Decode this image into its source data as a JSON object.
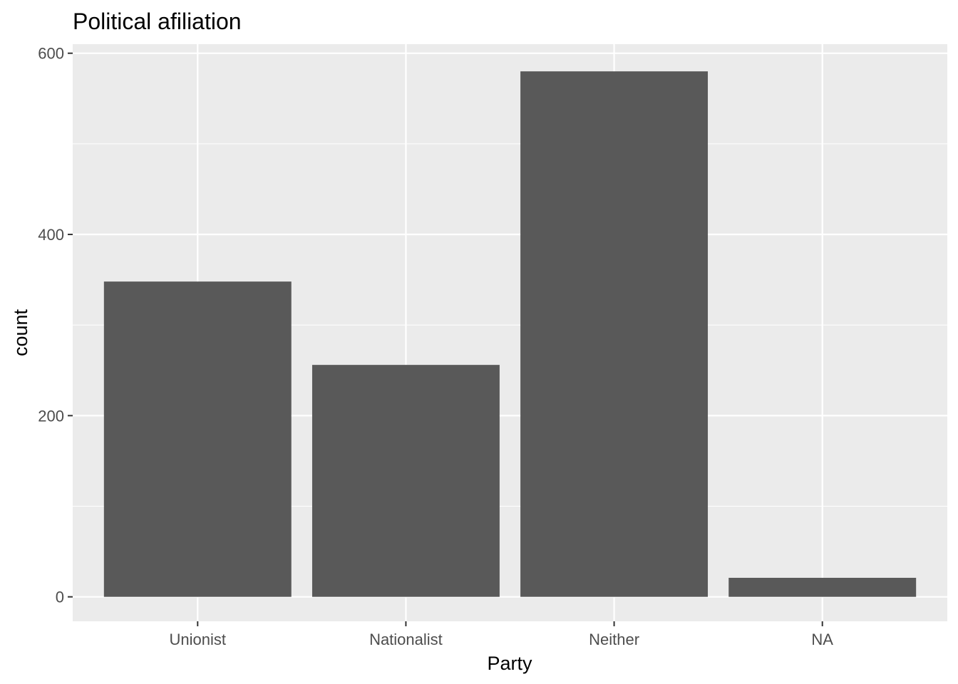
{
  "chart_data": {
    "type": "bar",
    "title": "Political afiliation",
    "xlabel": "Party",
    "ylabel": "count",
    "categories": [
      "Unionist",
      "Nationalist",
      "Neither",
      "NA"
    ],
    "values": [
      348,
      256,
      580,
      21
    ],
    "ylim": [
      -27,
      610
    ],
    "yticks": [
      0,
      200,
      400,
      600
    ],
    "grid": true,
    "colors": {
      "bar": "#595959",
      "panel": "#EBEBEB",
      "grid": "#FFFFFF",
      "axis_text": "#4D4D4D"
    }
  }
}
